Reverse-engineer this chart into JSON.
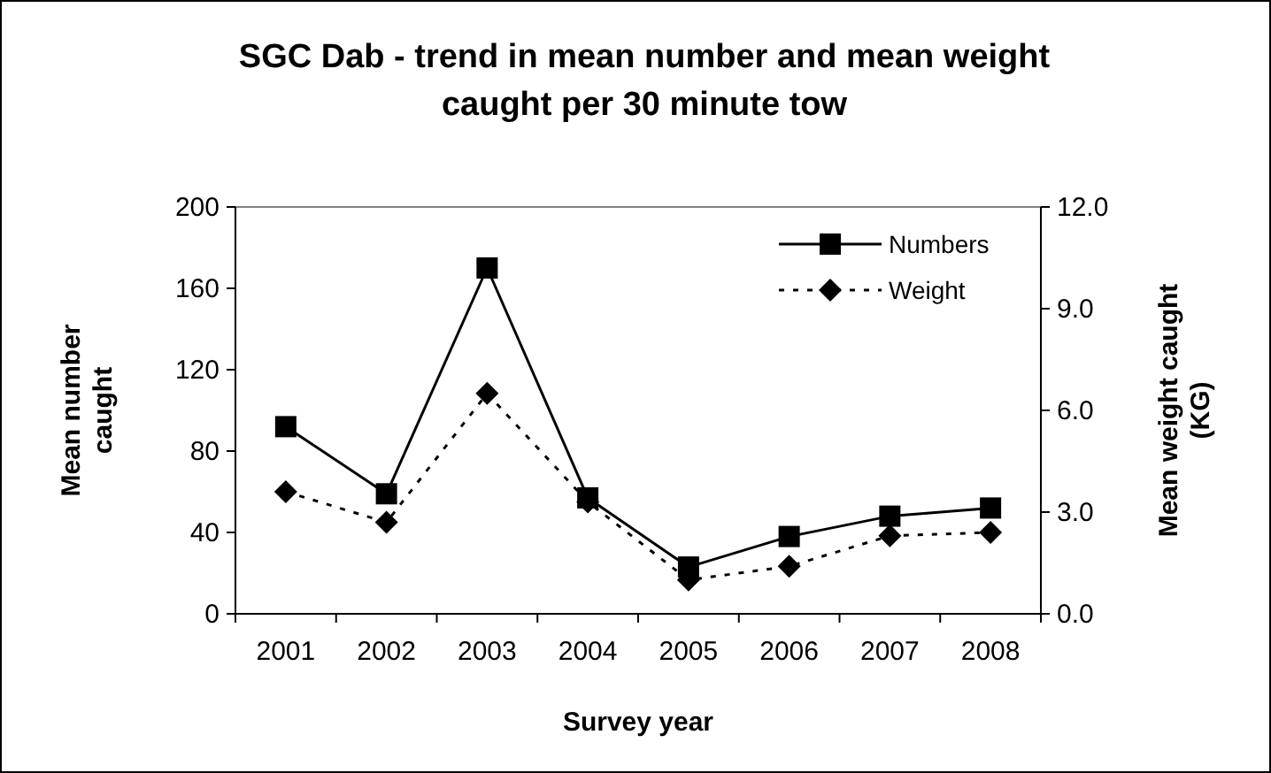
{
  "chart_data": {
    "type": "line",
    "title": "SGC Dab - trend in mean number and mean weight caught per 30 minute tow",
    "xlabel": "Survey year",
    "ylabel": "Mean number caught",
    "y2label": "Mean weight caught (KG)",
    "categories": [
      "2001",
      "2002",
      "2003",
      "2004",
      "2005",
      "2006",
      "2007",
      "2008"
    ],
    "series": [
      {
        "name": "Numbers",
        "color": "#000000",
        "marker": "square",
        "line_style": "solid",
        "values": [
          92,
          59,
          170,
          57,
          23,
          38,
          48,
          52
        ]
      },
      {
        "name": "Weight",
        "color": "#000000",
        "marker": "diamond",
        "line_style": "dotted",
        "axis": "y2",
        "values": [
          3.6,
          2.7,
          6.5,
          3.3,
          1.0,
          1.4,
          2.3,
          2.4
        ]
      }
    ],
    "ylim": [
      0,
      200
    ],
    "yticks": [
      0,
      40,
      80,
      120,
      160,
      200
    ],
    "y2lim": [
      0,
      12
    ],
    "y2ticks": [
      {
        "value": 0,
        "label": "0.0"
      },
      {
        "value": 3,
        "label": "3.0"
      },
      {
        "value": 6,
        "label": "6.0"
      },
      {
        "value": 9,
        "label": "9.0"
      },
      {
        "value": 12,
        "label": "12.0"
      }
    ],
    "grid": false,
    "legend": "top right"
  }
}
